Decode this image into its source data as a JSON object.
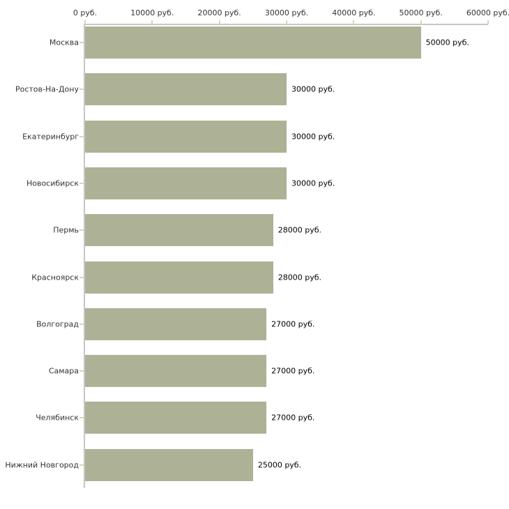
{
  "chart_data": {
    "type": "bar",
    "orientation": "horizontal",
    "title": "",
    "xlabel": "",
    "ylabel": "",
    "xlim": [
      0,
      60000
    ],
    "grid": false,
    "legend": false,
    "x_tick_values": [
      0,
      10000,
      20000,
      30000,
      40000,
      50000,
      60000
    ],
    "x_tick_labels": [
      "0 руб.",
      "10000 руб.",
      "20000 руб.",
      "30000 руб.",
      "40000 руб.",
      "50000 руб.",
      "60000 руб."
    ],
    "categories": [
      "Москва",
      "Ростов-На-Дону",
      "Екатеринбург",
      "Новосибирск",
      "Пермь",
      "Красноярск",
      "Волгоград",
      "Самара",
      "Челябинск",
      "Нижний Новгород"
    ],
    "values": [
      50000,
      30000,
      30000,
      30000,
      28000,
      28000,
      27000,
      27000,
      27000,
      25000
    ],
    "value_labels": [
      "50000 руб.",
      "30000 руб.",
      "30000 руб.",
      "30000 руб.",
      "28000 руб.",
      "28000 руб.",
      "27000 руб.",
      "27000 руб.",
      "27000 руб.",
      "25000 руб."
    ],
    "colors": {
      "bar": "#adb296",
      "axis_line": "#c6c6c6",
      "tick_mark": "#d6d7b4",
      "axis_text": "#333333",
      "value_text": "#000000",
      "background": "#ffffff"
    },
    "layout_hints": {
      "axis_position": "top",
      "value_labels_position": "right-of-bar"
    }
  }
}
